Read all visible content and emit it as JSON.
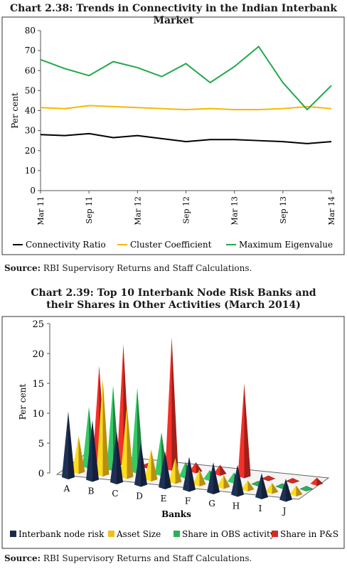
{
  "chart_data": [
    {
      "type": "line",
      "title": "Chart 2.38: Trends in Connectivity in the Indian Interbank Market",
      "ylabel": "Per cent",
      "xlabel": "",
      "ylim": [
        0,
        80
      ],
      "yticks": [
        0,
        10,
        20,
        30,
        40,
        50,
        60,
        70,
        80
      ],
      "x_tick_labels": [
        "Mar 11",
        "Sep 11",
        "Mar 12",
        "Sep 12",
        "Mar 13",
        "Sep 13",
        "Mar 14"
      ],
      "grid": false,
      "legend_position": "bottom",
      "x": [
        "Mar 11",
        "Jun 11",
        "Sep 11",
        "Dec 11",
        "Mar 12",
        "Jun 12",
        "Sep 12",
        "Dec 12",
        "Mar 13",
        "Jun 13",
        "Sep 13",
        "Dec 13",
        "Mar 14"
      ],
      "series": [
        {
          "name": "Connectivity Ratio",
          "color": "#000000",
          "values": [
            28,
            27.5,
            28.5,
            26.5,
            27.5,
            26,
            24.5,
            25.5,
            25.5,
            25,
            24.5,
            23.5,
            24.5
          ]
        },
        {
          "name": "Cluster Coefficient",
          "color": "#f5b800",
          "values": [
            41.5,
            41,
            42.5,
            42,
            41.5,
            41,
            40.5,
            41,
            40.5,
            40.5,
            41,
            42,
            41
          ]
        },
        {
          "name": "Maximum Eigenvalue",
          "color": "#22a84a",
          "values": [
            65.5,
            61,
            57.5,
            64.5,
            61.5,
            57,
            63.5,
            54,
            62,
            72,
            54,
            40.5,
            52.5
          ]
        }
      ]
    },
    {
      "type": "bar",
      "title": "Chart 2.39: Top 10 Interbank Node Risk Banks and their Shares in Other Activities (March 2014)",
      "ylabel": "Per cent",
      "xlabel": "Banks",
      "ylim": [
        0,
        25
      ],
      "yticks": [
        0,
        5,
        10,
        15,
        20,
        25
      ],
      "categories": [
        "A",
        "B",
        "C",
        "D",
        "E",
        "F",
        "G",
        "H",
        "I",
        "J"
      ],
      "legend_position": "bottom",
      "series": [
        {
          "name": "Interbank node risk",
          "color": "#1a2a4a",
          "values": [
            11,
            10,
            8.5,
            7,
            6,
            5.5,
            5,
            5,
            4,
            3.5
          ]
        },
        {
          "name": "Asset Size",
          "color": "#f2bf1a",
          "values": [
            6,
            16,
            12,
            5,
            4,
            2.5,
            2,
            1.5,
            1.5,
            1.5
          ]
        },
        {
          "name": "Share in OBS activity",
          "color": "#2fae5a",
          "values": [
            10,
            14,
            14,
            7,
            2.5,
            1.5,
            1.5,
            0.5,
            0.3,
            0.3
          ]
        },
        {
          "name": "Share in P&S",
          "color": "#d42a23",
          "values": [
            16,
            20,
            0.5,
            22,
            1.5,
            1.5,
            15.5,
            0.5,
            0.5,
            1
          ]
        }
      ]
    }
  ],
  "sources": {
    "label": "Source:",
    "text1": " RBI Supervisory Returns and Staff Calculations.",
    "text2": " RBI Supervisory Returns and Staff Calculations."
  }
}
